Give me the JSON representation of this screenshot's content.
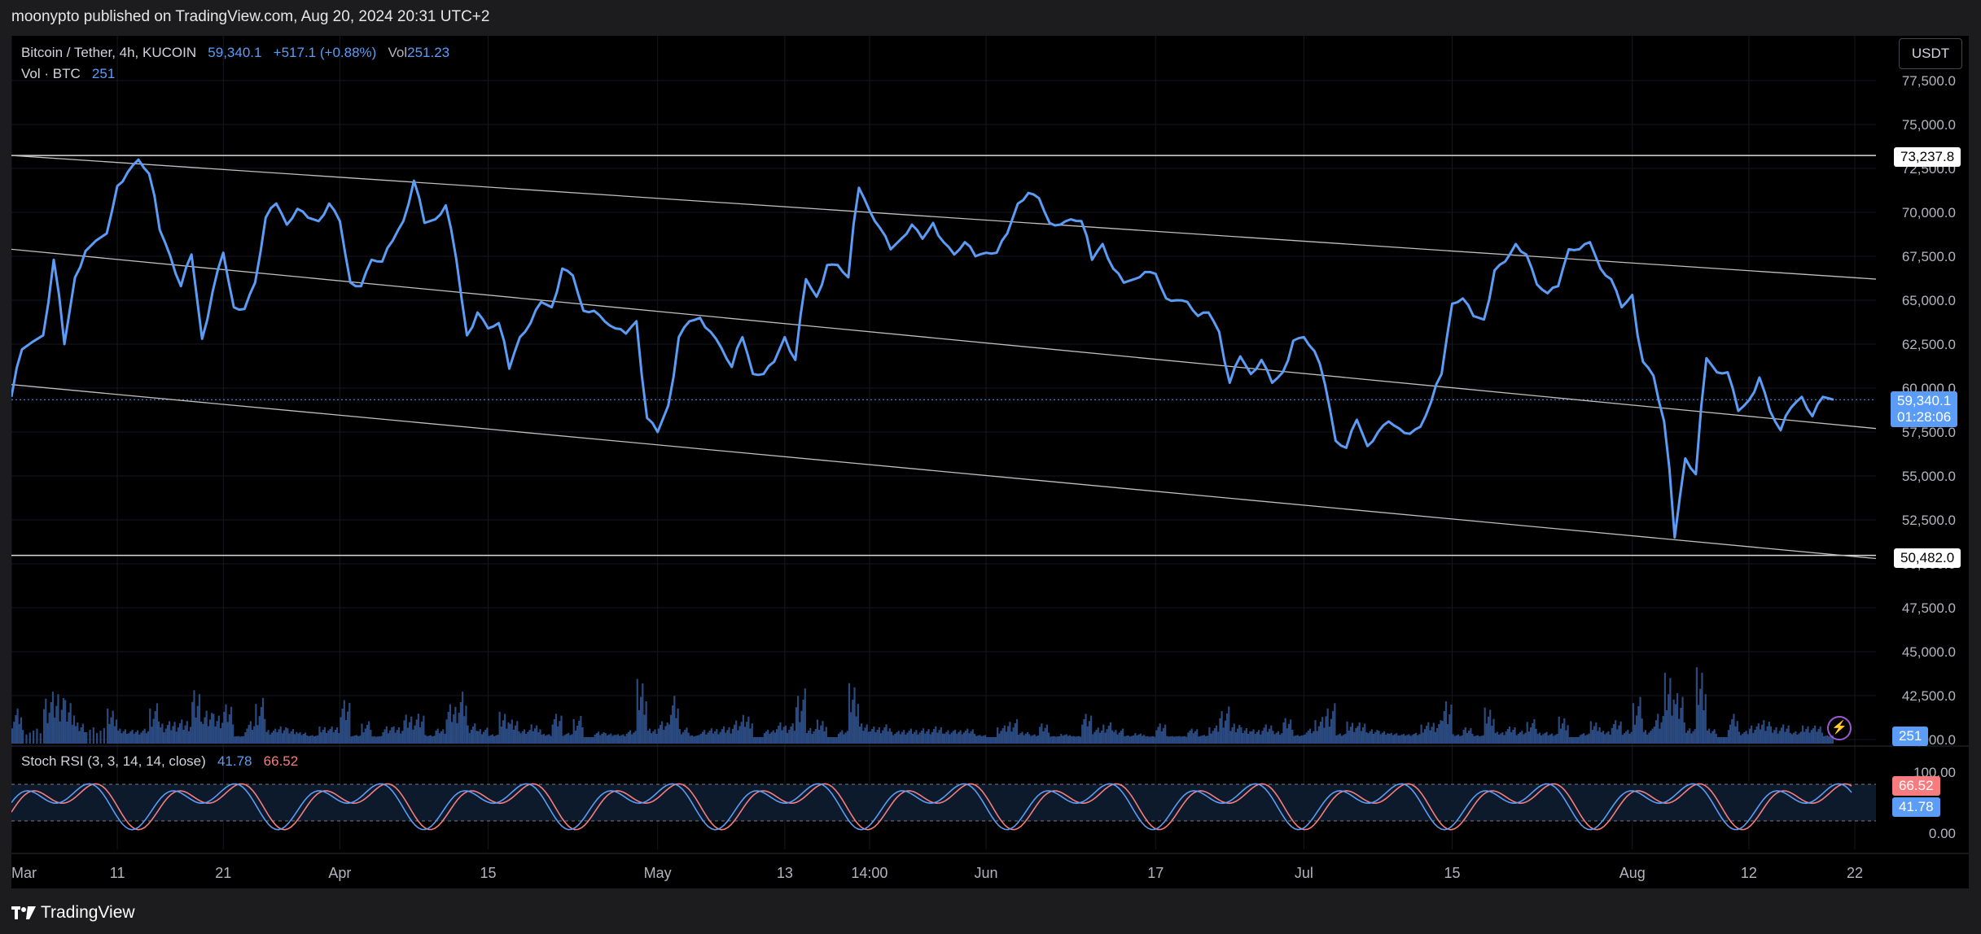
{
  "publish_info": "moonypto published on TradingView.com, Aug 20, 2024 20:31 UTC+2",
  "legend": {
    "symbol": "Bitcoin / Tether, 4h, KUCOIN",
    "price": "59,340.1",
    "change": "+517.1 (+0.88%)",
    "vol_label": "Vol",
    "vol_value": "251.23",
    "vol_series_label": "Vol · BTC",
    "vol_series_value": "251"
  },
  "stoch": {
    "label": "Stoch RSI (3, 3, 14, 14, close)",
    "k_value": "41.78",
    "d_value": "66.52",
    "axis_labels": [
      "100.00",
      "0.00"
    ]
  },
  "currency_button": "USDT",
  "price_axis_labels": [
    "77,500.0",
    "75,000.0",
    "72,500.0",
    "70,000.0",
    "67,500.0",
    "65,000.0",
    "62,500.0",
    "60,000.0",
    "57,500.0",
    "55,000.0",
    "52,500.0",
    "50,000.0",
    "47,500.0",
    "45,000.0",
    "42,500.0",
    "40,000.0"
  ],
  "badges": {
    "resistance": "73,237.8",
    "support": "50,482.0",
    "last_price": "59,340.1",
    "countdown": "01:28:06",
    "volume": "251",
    "stoch_d": "66.52",
    "stoch_k": "41.78"
  },
  "time_axis_labels": [
    "Mar",
    "11",
    "21",
    "Apr",
    "15",
    "May",
    "13",
    "14:00",
    "Jun",
    "17",
    "Jul",
    "15",
    "Aug",
    "12",
    "22"
  ],
  "footer_brand": "TradingView",
  "colors": {
    "price_line": "#5b9cf6",
    "stoch_k": "#5b9cf6",
    "stoch_d": "#f77c80",
    "volume": "#2a4a80",
    "background": "#000000"
  },
  "chart_data": {
    "type": "line",
    "x_ticks": [
      "Mar",
      "11",
      "21",
      "Apr",
      "15",
      "May",
      "13",
      "14:00",
      "Jun",
      "17",
      "Jul",
      "15",
      "Aug",
      "12",
      "22"
    ],
    "y_ticks": [
      "77,500.0",
      "75,000.0",
      "72,500.0",
      "70,000.0",
      "67,500.0",
      "65,000.0",
      "62,500.0",
      "60,000.0",
      "57,500.0",
      "55,000.0",
      "52,500.0",
      "50,000.0",
      "47,500.0",
      "45,000.0",
      "42,500.0",
      "40,000.0"
    ],
    "ylim": [
      40000,
      77500
    ],
    "xlim": [
      "2024-03-01",
      "2024-08-24"
    ],
    "price_series": [
      [
        "2024-03-01",
        59500
      ],
      [
        "2024-03-02",
        62200
      ],
      [
        "2024-03-04",
        63000
      ],
      [
        "2024-03-05",
        67300
      ],
      [
        "2024-03-06",
        62500
      ],
      [
        "2024-03-07",
        66300
      ],
      [
        "2024-03-08",
        67800
      ],
      [
        "2024-03-10",
        68800
      ],
      [
        "2024-03-11",
        71500
      ],
      [
        "2024-03-12",
        72300
      ],
      [
        "2024-03-13",
        73000
      ],
      [
        "2024-03-14",
        72200
      ],
      [
        "2024-03-15",
        69000
      ],
      [
        "2024-03-16",
        67500
      ],
      [
        "2024-03-17",
        65800
      ],
      [
        "2024-03-18",
        67600
      ],
      [
        "2024-03-19",
        62800
      ],
      [
        "2024-03-20",
        65500
      ],
      [
        "2024-03-21",
        67700
      ],
      [
        "2024-03-22",
        64600
      ],
      [
        "2024-03-23",
        64500
      ],
      [
        "2024-03-24",
        66000
      ],
      [
        "2024-03-25",
        69700
      ],
      [
        "2024-03-26",
        70500
      ],
      [
        "2024-03-27",
        69300
      ],
      [
        "2024-03-28",
        70200
      ],
      [
        "2024-03-29",
        69700
      ],
      [
        "2024-03-30",
        69500
      ],
      [
        "2024-03-31",
        70500
      ],
      [
        "2024-04-01",
        69500
      ],
      [
        "2024-04-02",
        66000
      ],
      [
        "2024-04-03",
        65800
      ],
      [
        "2024-04-04",
        67300
      ],
      [
        "2024-04-05",
        67200
      ],
      [
        "2024-04-06",
        68400
      ],
      [
        "2024-04-07",
        69500
      ],
      [
        "2024-04-08",
        71800
      ],
      [
        "2024-04-09",
        69400
      ],
      [
        "2024-04-10",
        69600
      ],
      [
        "2024-04-11",
        70400
      ],
      [
        "2024-04-12",
        67300
      ],
      [
        "2024-04-13",
        63000
      ],
      [
        "2024-04-14",
        64300
      ],
      [
        "2024-04-15",
        63400
      ],
      [
        "2024-04-16",
        63700
      ],
      [
        "2024-04-17",
        61100
      ],
      [
        "2024-04-18",
        62900
      ],
      [
        "2024-04-19",
        63700
      ],
      [
        "2024-04-20",
        64900
      ],
      [
        "2024-04-21",
        64600
      ],
      [
        "2024-04-22",
        66800
      ],
      [
        "2024-04-23",
        66400
      ],
      [
        "2024-04-24",
        64400
      ],
      [
        "2024-04-25",
        64400
      ],
      [
        "2024-04-26",
        63800
      ],
      [
        "2024-04-27",
        63400
      ],
      [
        "2024-04-28",
        63100
      ],
      [
        "2024-04-29",
        63800
      ],
      [
        "2024-04-30",
        58300
      ],
      [
        "2024-05-01",
        57500
      ],
      [
        "2024-05-02",
        59000
      ],
      [
        "2024-05-03",
        62900
      ],
      [
        "2024-05-04",
        63800
      ],
      [
        "2024-05-05",
        64000
      ],
      [
        "2024-05-06",
        63200
      ],
      [
        "2024-05-07",
        62300
      ],
      [
        "2024-05-08",
        61200
      ],
      [
        "2024-05-09",
        62900
      ],
      [
        "2024-05-10",
        60800
      ],
      [
        "2024-05-11",
        60800
      ],
      [
        "2024-05-12",
        61500
      ],
      [
        "2024-05-13",
        62900
      ],
      [
        "2024-05-14",
        61600
      ],
      [
        "2024-05-15",
        66200
      ],
      [
        "2024-05-16",
        65200
      ],
      [
        "2024-05-17",
        67000
      ],
      [
        "2024-05-18",
        67000
      ],
      [
        "2024-05-19",
        66300
      ],
      [
        "2024-05-20",
        71400
      ],
      [
        "2024-05-21",
        70100
      ],
      [
        "2024-05-22",
        69100
      ],
      [
        "2024-05-23",
        67900
      ],
      [
        "2024-05-24",
        68500
      ],
      [
        "2024-05-25",
        69300
      ],
      [
        "2024-05-26",
        68500
      ],
      [
        "2024-05-27",
        69400
      ],
      [
        "2024-05-28",
        68300
      ],
      [
        "2024-05-29",
        67600
      ],
      [
        "2024-05-30",
        68300
      ],
      [
        "2024-05-31",
        67500
      ],
      [
        "2024-06-01",
        67700
      ],
      [
        "2024-06-02",
        67700
      ],
      [
        "2024-06-03",
        68800
      ],
      [
        "2024-06-04",
        70500
      ],
      [
        "2024-06-05",
        71100
      ],
      [
        "2024-06-06",
        70800
      ],
      [
        "2024-06-07",
        69400
      ],
      [
        "2024-06-08",
        69300
      ],
      [
        "2024-06-09",
        69600
      ],
      [
        "2024-06-10",
        69500
      ],
      [
        "2024-06-11",
        67300
      ],
      [
        "2024-06-12",
        68200
      ],
      [
        "2024-06-13",
        66800
      ],
      [
        "2024-06-14",
        66000
      ],
      [
        "2024-06-15",
        66200
      ],
      [
        "2024-06-16",
        66600
      ],
      [
        "2024-06-17",
        66500
      ],
      [
        "2024-06-18",
        65100
      ],
      [
        "2024-06-19",
        65000
      ],
      [
        "2024-06-20",
        64900
      ],
      [
        "2024-06-21",
        64100
      ],
      [
        "2024-06-22",
        64300
      ],
      [
        "2024-06-23",
        63200
      ],
      [
        "2024-06-24",
        60300
      ],
      [
        "2024-06-25",
        61800
      ],
      [
        "2024-06-26",
        60800
      ],
      [
        "2024-06-27",
        61600
      ],
      [
        "2024-06-28",
        60300
      ],
      [
        "2024-06-29",
        60900
      ],
      [
        "2024-06-30",
        62700
      ],
      [
        "2024-07-01",
        62900
      ],
      [
        "2024-07-02",
        62100
      ],
      [
        "2024-07-03",
        60200
      ],
      [
        "2024-07-04",
        57000
      ],
      [
        "2024-07-05",
        56600
      ],
      [
        "2024-07-06",
        58200
      ],
      [
        "2024-07-07",
        56700
      ],
      [
        "2024-07-08",
        57500
      ],
      [
        "2024-07-09",
        58100
      ],
      [
        "2024-07-10",
        57700
      ],
      [
        "2024-07-11",
        57400
      ],
      [
        "2024-07-12",
        57800
      ],
      [
        "2024-07-13",
        59200
      ],
      [
        "2024-07-14",
        60800
      ],
      [
        "2024-07-15",
        64800
      ],
      [
        "2024-07-16",
        65100
      ],
      [
        "2024-07-17",
        64100
      ],
      [
        "2024-07-18",
        63900
      ],
      [
        "2024-07-19",
        66700
      ],
      [
        "2024-07-20",
        67200
      ],
      [
        "2024-07-21",
        68200
      ],
      [
        "2024-07-22",
        67600
      ],
      [
        "2024-07-23",
        65900
      ],
      [
        "2024-07-24",
        65400
      ],
      [
        "2024-07-25",
        65800
      ],
      [
        "2024-07-26",
        67900
      ],
      [
        "2024-07-27",
        67900
      ],
      [
        "2024-07-28",
        68300
      ],
      [
        "2024-07-29",
        66800
      ],
      [
        "2024-07-30",
        66200
      ],
      [
        "2024-07-31",
        64600
      ],
      [
        "2024-08-01",
        65300
      ],
      [
        "2024-08-02",
        61500
      ],
      [
        "2024-08-03",
        60700
      ],
      [
        "2024-08-04",
        58100
      ],
      [
        "2024-08-05",
        51500
      ],
      [
        "2024-08-06",
        56000
      ],
      [
        "2024-08-07",
        55100
      ],
      [
        "2024-08-08",
        61700
      ],
      [
        "2024-08-09",
        60900
      ],
      [
        "2024-08-10",
        60900
      ],
      [
        "2024-08-11",
        58700
      ],
      [
        "2024-08-12",
        59300
      ],
      [
        "2024-08-13",
        60600
      ],
      [
        "2024-08-14",
        58700
      ],
      [
        "2024-08-15",
        57600
      ],
      [
        "2024-08-16",
        58900
      ],
      [
        "2024-08-17",
        59500
      ],
      [
        "2024-08-18",
        58400
      ],
      [
        "2024-08-19",
        59500
      ],
      [
        "2024-08-20",
        59340
      ]
    ],
    "horizontal_levels": [
      73237.8,
      50482.0
    ],
    "channel_lines": [
      {
        "from": [
          "2024-03-01",
          73237.8
        ],
        "to": [
          "2024-08-24",
          66200
        ]
      },
      {
        "from": [
          "2024-03-01",
          67900
        ],
        "to": [
          "2024-08-24",
          57700
        ]
      },
      {
        "from": [
          "2024-03-01",
          60200
        ],
        "to": [
          "2024-08-24",
          50300
        ]
      }
    ],
    "last_price_line": 59340.1
  }
}
